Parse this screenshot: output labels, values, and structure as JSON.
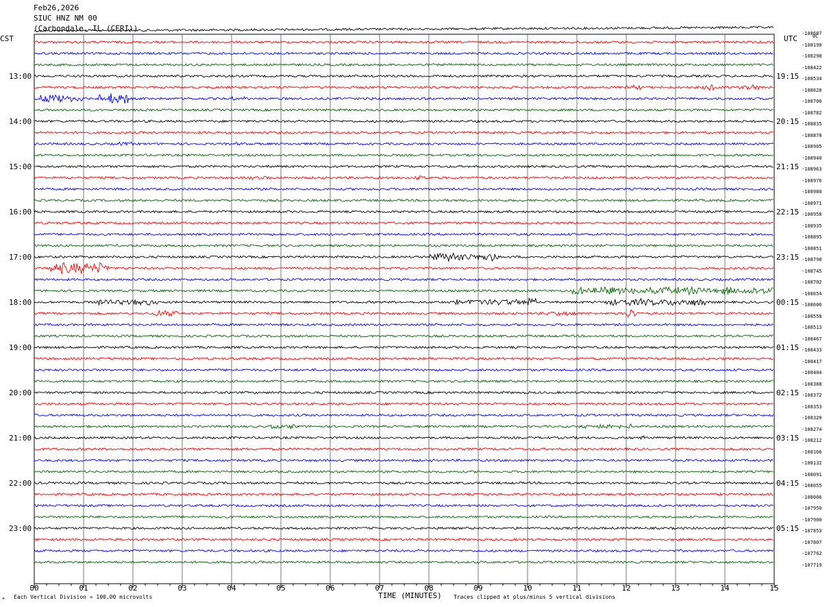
{
  "header": {
    "date": "Feb26,2026",
    "station": "SIUC HNZ NM 00",
    "location": "(Carbondale, IL (CERI))"
  },
  "left_timezone": "CST",
  "right_timezone": "UTC",
  "colors": {
    "trace_cycle": [
      "#000000",
      "#ff0000",
      "#0000ff",
      "#006400"
    ],
    "grid": "#000000"
  },
  "chart_data": {
    "type": "line",
    "title": "",
    "xlabel": "TIME (MINUTES)",
    "ylabel": "",
    "xlim": [
      0,
      15
    ],
    "x_ticks": [
      "00",
      "01",
      "02",
      "03",
      "04",
      "05",
      "06",
      "07",
      "08",
      "09",
      "10",
      "11",
      "12",
      "13",
      "14",
      "15"
    ],
    "left_hour_labels": [
      "13:00",
      "14:00",
      "15:00",
      "16:00",
      "17:00",
      "18:00",
      "19:00",
      "20:00",
      "21:00",
      "22:00",
      "23:00"
    ],
    "right_hour_labels": [
      "19:15",
      "20:15",
      "21:15",
      "22:15",
      "23:15",
      "00:15",
      "01:15",
      "02:15",
      "03:15",
      "04:15",
      "05:15"
    ],
    "trace_offsets": [
      "-108687",
      "-108190",
      "-108298",
      "-108422",
      "-108534",
      "-108628",
      "-108706",
      "-108782",
      "-108835",
      "-108878",
      "-108905",
      "-108940",
      "-108963",
      "-108976",
      "-108980",
      "-108971",
      "-108958",
      "-108935",
      "-108895",
      "-108851",
      "-108798",
      "-108745",
      "-108702",
      "-108654",
      "-108606",
      "-108558",
      "-108513",
      "-108467",
      "-108433",
      "-108417",
      "-108404",
      "-108388",
      "-108372",
      "-108353",
      "-108320",
      "-108274",
      "-108212",
      "-108166",
      "-108132",
      "-108091",
      "-108055",
      "-108006",
      "-107950",
      "-107900",
      "-107853",
      "-107807",
      "-107762",
      "-107719"
    ],
    "first_row_is_partial": true,
    "corner_mark": "0C",
    "scale_note": "Each Vertical Division =  100.00 microvolts",
    "clip_note": "Traces clipped at plus/minus 5 vertical divisions",
    "series": [
      {
        "row": 5,
        "events": [
          [
            12.0,
            0.3,
            4
          ],
          [
            13.5,
            0.3,
            6
          ],
          [
            14.3,
            0.4,
            5
          ]
        ]
      },
      {
        "row": 6,
        "events": [
          [
            0.1,
            0.9,
            6
          ],
          [
            1.3,
            0.6,
            9
          ],
          [
            4.0,
            0.5,
            3
          ],
          [
            6.7,
            0.3,
            3
          ]
        ]
      },
      {
        "row": 10,
        "events": [
          [
            1.7,
            0.3,
            3
          ],
          [
            4.1,
            0.2,
            3
          ]
        ]
      },
      {
        "row": 13,
        "events": [
          [
            4.3,
            0.5,
            3
          ],
          [
            7.7,
            0.3,
            6
          ]
        ]
      },
      {
        "row": 20,
        "events": [
          [
            8.0,
            1.4,
            7
          ]
        ]
      },
      {
        "row": 21,
        "events": [
          [
            0.3,
            1.2,
            9
          ]
        ]
      },
      {
        "row": 23,
        "events": [
          [
            10.9,
            4.1,
            6
          ]
        ]
      },
      {
        "row": 24,
        "events": [
          [
            1.3,
            1.2,
            5
          ],
          [
            8.5,
            1.5,
            5
          ],
          [
            10.0,
            0.2,
            8
          ],
          [
            11.6,
            2.0,
            6
          ]
        ]
      },
      {
        "row": 25,
        "events": [
          [
            2.4,
            0.5,
            5
          ],
          [
            10.4,
            0.6,
            4
          ],
          [
            12.0,
            0.2,
            8
          ]
        ]
      },
      {
        "row": 35,
        "events": [
          [
            4.8,
            0.6,
            4
          ],
          [
            11.1,
            1.0,
            4
          ]
        ]
      },
      {
        "row": 36,
        "events": [
          [
            12.2,
            0.5,
            3
          ]
        ]
      }
    ]
  }
}
